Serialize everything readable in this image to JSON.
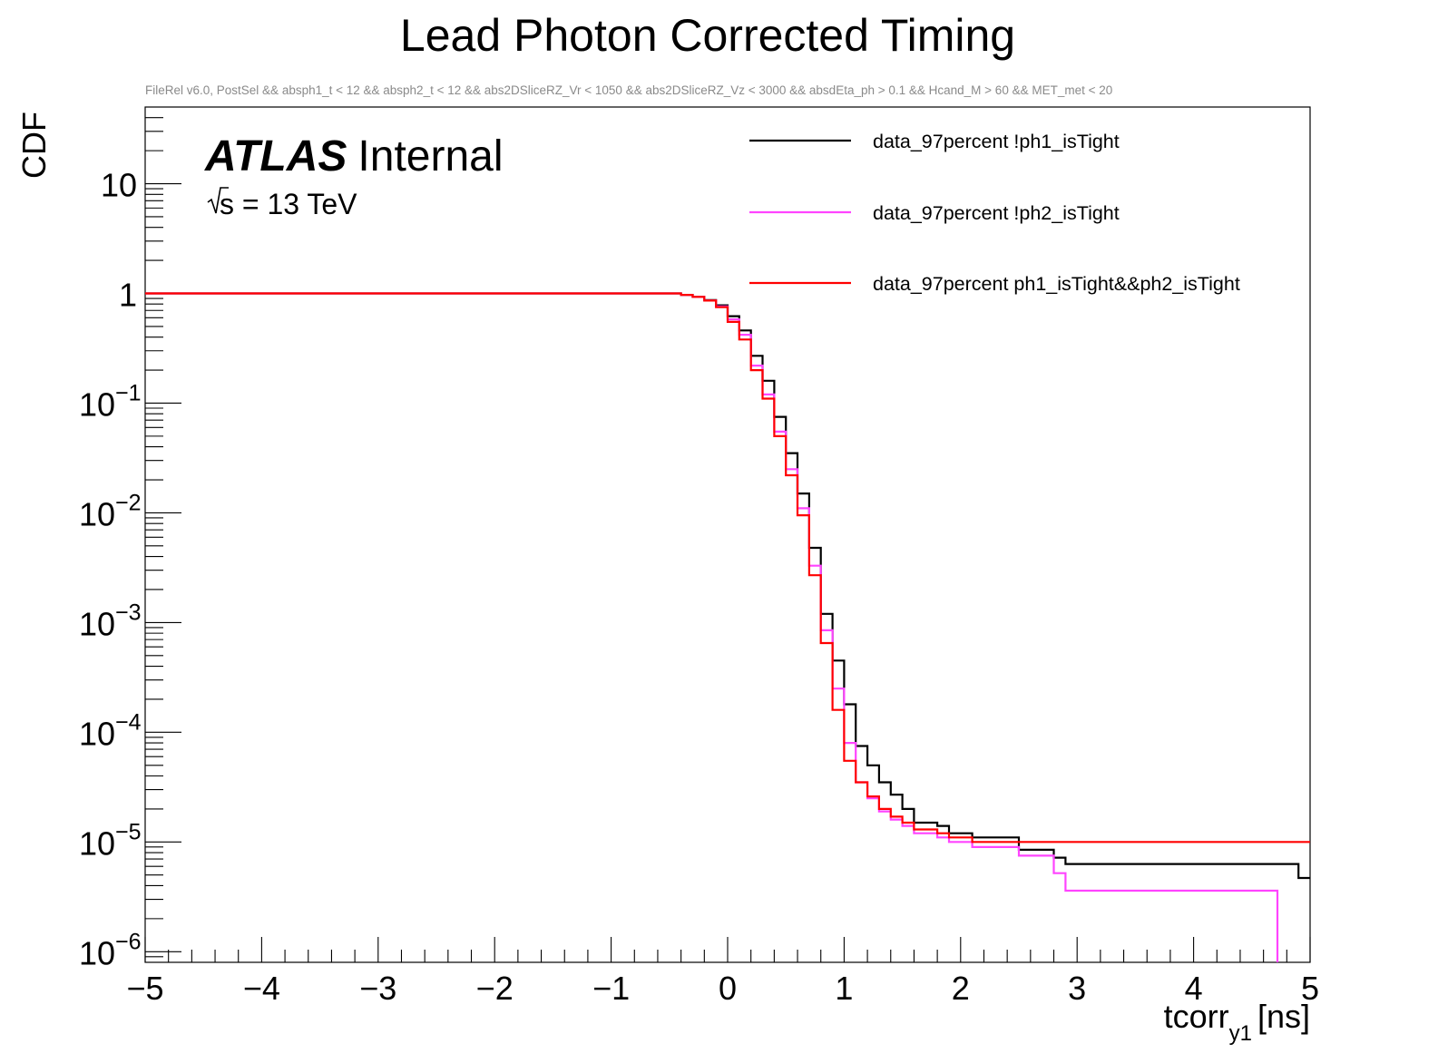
{
  "chart_data": {
    "type": "line",
    "title": "Lead Photon Corrected Timing",
    "subtitle": "FileRel v6.0, PostSel &&  absph1_t < 12 && absph2_t < 12 && abs2DSliceRZ_Vr < 1050 && abs2DSliceRZ_Vz < 3000 && absdEta_ph > 0.1 && Hcand_M > 60 && MET_met < 20",
    "xlabel": "tcorr",
    "xlabel_sub": "y1",
    "xlabel_unit": "[ns]",
    "ylabel": "CDF",
    "yscale": "log",
    "xlim": [
      -5,
      5
    ],
    "ylim": [
      8e-07,
      50
    ],
    "x_ticks": [
      "−5",
      "−4",
      "−3",
      "−2",
      "−1",
      "0",
      "1",
      "2",
      "3",
      "4",
      "5"
    ],
    "y_ticks": [
      {
        "exp": -6,
        "base": "10",
        "sup": "−6"
      },
      {
        "exp": -5,
        "base": "10",
        "sup": "−5"
      },
      {
        "exp": -4,
        "base": "10",
        "sup": "−4"
      },
      {
        "exp": -3,
        "base": "10",
        "sup": "−3"
      },
      {
        "exp": -2,
        "base": "10",
        "sup": "−2"
      },
      {
        "exp": -1,
        "base": "10",
        "sup": "−1"
      },
      {
        "exp": 0,
        "base": "1",
        "sup": ""
      },
      {
        "exp": 1,
        "base": "10",
        "sup": ""
      }
    ],
    "atlas_label": "ATLAS",
    "atlas_status": "Internal",
    "energy_label": "s = 13 TeV",
    "legend_position": "top-right",
    "series": [
      {
        "name": "data_97percent !ph1_isTight",
        "color": "#000000",
        "x": [
          -5.0,
          -0.5,
          -0.4,
          -0.3,
          -0.2,
          -0.1,
          0.0,
          0.1,
          0.2,
          0.3,
          0.4,
          0.5,
          0.6,
          0.7,
          0.8,
          0.9,
          1.0,
          1.1,
          1.2,
          1.3,
          1.4,
          1.5,
          1.6,
          1.7,
          1.8,
          1.9,
          2.1,
          2.5,
          2.8,
          2.9,
          4.9,
          5.0
        ],
        "y": [
          1.0,
          1.0,
          0.97,
          0.93,
          0.87,
          0.78,
          0.62,
          0.46,
          0.27,
          0.16,
          0.075,
          0.035,
          0.015,
          0.0048,
          0.0012,
          0.00045,
          0.00018,
          7.5e-05,
          5e-05,
          3.5e-05,
          2.7e-05,
          2e-05,
          1.5e-05,
          1.5e-05,
          1.4e-05,
          1.2e-05,
          1.1e-05,
          8.5e-06,
          7.2e-06,
          6.3e-06,
          4.7e-06,
          4.7e-06
        ]
      },
      {
        "name": "data_97percent !ph2_isTight",
        "color": "#ff44ff",
        "x": [
          -5.0,
          -0.5,
          -0.4,
          -0.3,
          -0.2,
          -0.1,
          0.0,
          0.1,
          0.2,
          0.3,
          0.4,
          0.5,
          0.6,
          0.7,
          0.8,
          0.9,
          1.0,
          1.1,
          1.2,
          1.3,
          1.4,
          1.5,
          1.6,
          1.7,
          1.8,
          1.9,
          2.1,
          2.5,
          2.8,
          2.9,
          4.7,
          4.72
        ],
        "y": [
          1.0,
          1.0,
          0.97,
          0.93,
          0.86,
          0.76,
          0.58,
          0.42,
          0.22,
          0.12,
          0.055,
          0.025,
          0.011,
          0.0033,
          0.00085,
          0.00025,
          8e-05,
          3.5e-05,
          2.5e-05,
          1.9e-05,
          1.6e-05,
          1.4e-05,
          1.2e-05,
          1.2e-05,
          1.1e-05,
          1e-05,
          9e-06,
          7.5e-06,
          5.2e-06,
          3.6e-06,
          3.6e-06,
          4e-07
        ]
      },
      {
        "name": "data_97percent ph1_isTight&&ph2_isTight",
        "color": "#ff0000",
        "x": [
          -5.0,
          -0.5,
          -0.4,
          -0.3,
          -0.2,
          -0.1,
          0.0,
          0.1,
          0.2,
          0.3,
          0.4,
          0.5,
          0.6,
          0.7,
          0.8,
          0.9,
          1.0,
          1.1,
          1.2,
          1.3,
          1.4,
          1.5,
          1.6,
          1.7,
          1.8,
          1.9,
          2.1,
          2.5,
          2.8,
          2.9,
          5.0
        ],
        "y": [
          1.0,
          1.0,
          0.97,
          0.93,
          0.86,
          0.75,
          0.55,
          0.38,
          0.2,
          0.11,
          0.05,
          0.022,
          0.0095,
          0.0027,
          0.00065,
          0.00016,
          5.5e-05,
          3.5e-05,
          2.6e-05,
          2e-05,
          1.7e-05,
          1.5e-05,
          1.3e-05,
          1.3e-05,
          1.2e-05,
          1.1e-05,
          1e-05,
          1e-05,
          1e-05,
          1e-05,
          1e-05
        ]
      }
    ]
  }
}
